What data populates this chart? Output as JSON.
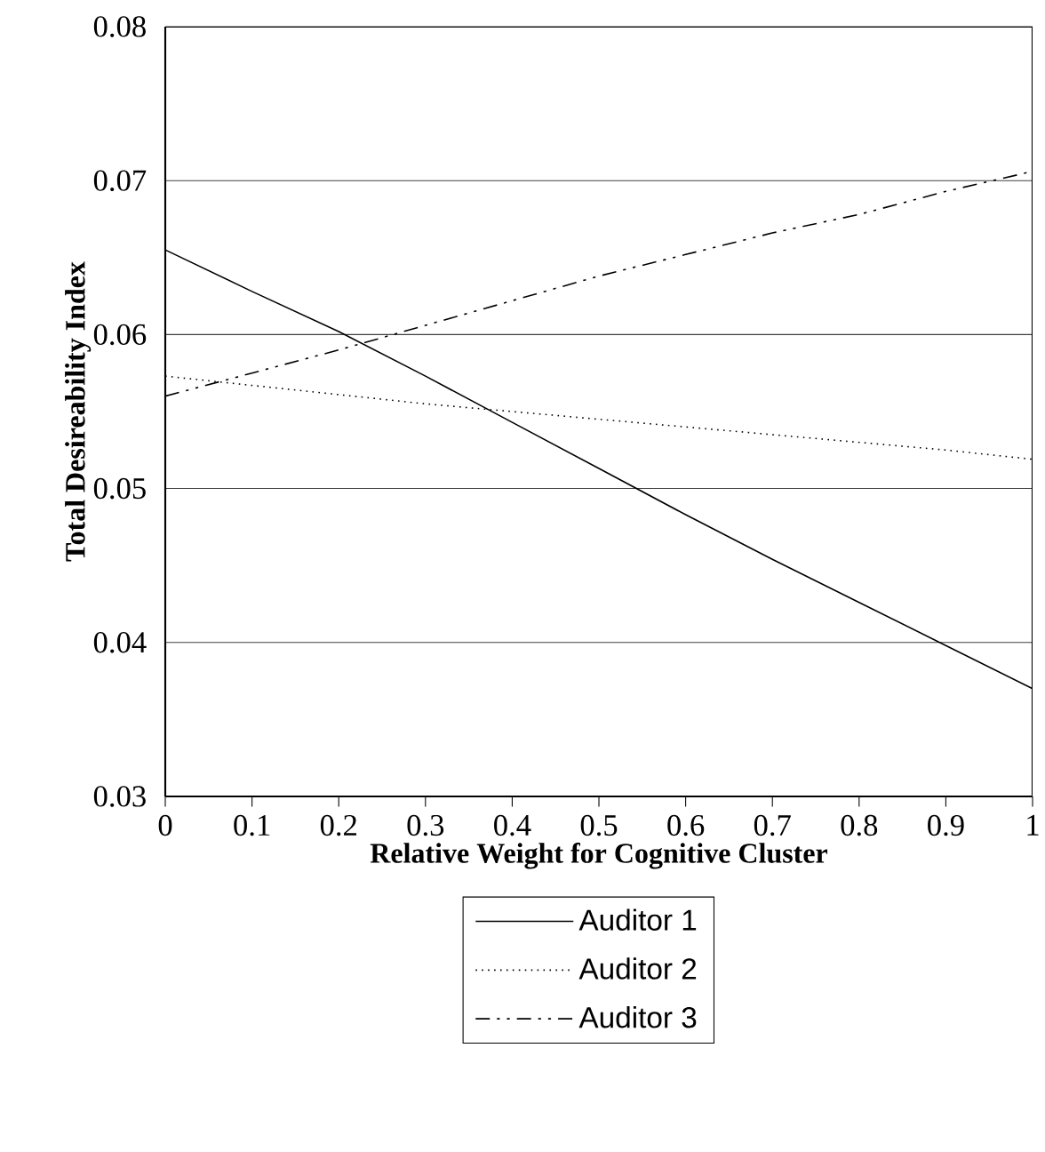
{
  "chart_data": {
    "type": "line",
    "xlabel": "Relative Weight for Cognitive Cluster",
    "ylabel": "Total Desireability Index",
    "x": [
      0,
      0.1,
      0.2,
      0.3,
      0.4,
      0.5,
      0.6,
      0.7,
      0.8,
      0.9,
      1
    ],
    "series": [
      {
        "name": "Auditor 1",
        "color": "#000000",
        "line_style": "solid",
        "values": [
          0.0655,
          0.0628,
          0.0602,
          0.0573,
          0.0543,
          0.0513,
          0.0483,
          0.0454,
          0.0426,
          0.0398,
          0.037
        ]
      },
      {
        "name": "Auditor 2",
        "color": "#000000",
        "line_style": "dotted",
        "values": [
          0.0573,
          0.0567,
          0.0561,
          0.0555,
          0.055,
          0.0545,
          0.054,
          0.0535,
          0.053,
          0.0525,
          0.0519
        ]
      },
      {
        "name": "Auditor 3",
        "color": "#000000",
        "line_style": "dashed",
        "values": [
          0.056,
          0.0575,
          0.059,
          0.0606,
          0.0622,
          0.0638,
          0.0652,
          0.0666,
          0.0678,
          0.0693,
          0.0706
        ]
      }
    ],
    "xlim": [
      0,
      1
    ],
    "ylim": [
      0.03,
      0.08
    ],
    "xticks": [
      0,
      0.1,
      0.2,
      0.3,
      0.4,
      0.5,
      0.6,
      0.7,
      0.8,
      0.9,
      1
    ],
    "yticks": [
      0.03,
      0.04,
      0.05,
      0.06,
      0.07,
      0.08
    ],
    "grid": "y",
    "legend": "bottom",
    "marker": "none"
  }
}
